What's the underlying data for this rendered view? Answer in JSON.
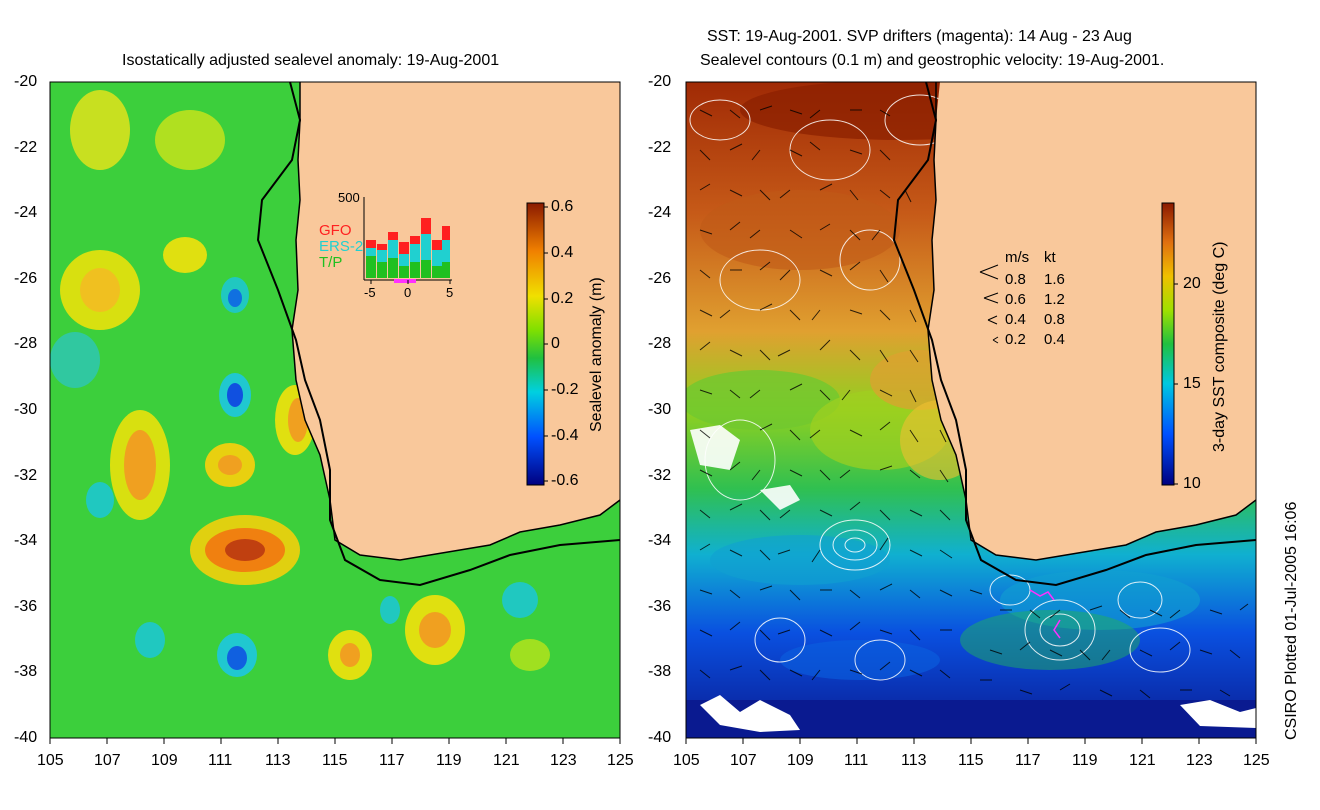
{
  "left_panel": {
    "title": "Isostatically adjusted sealevel anomaly: 19-Aug-2001",
    "colorbar_label": "Sealevel anomaly (m)",
    "colorbar_ticks": [
      "0.6",
      "0.4",
      "0.2",
      "0",
      "-0.2",
      "-0.4",
      "-0.6"
    ],
    "inset": {
      "ymax_label": "500",
      "legend": [
        {
          "label": "GFO",
          "color": "#ff2020"
        },
        {
          "label": "ERS-2",
          "color": "#20d0d0"
        },
        {
          "label": "T/P",
          "color": "#20c020"
        }
      ],
      "x_ticks": [
        "-5",
        "0",
        "5"
      ]
    }
  },
  "right_panel": {
    "title_line1": "SST: 19-Aug-2001. SVP drifters (magenta): 14 Aug - 23 Aug",
    "title_line2": "Sealevel contours (0.1 m) and geostrophic velocity: 19-Aug-2001.",
    "colorbar_label": "3-day SST composite (deg C)",
    "colorbar_ticks": [
      "20",
      "15",
      "10"
    ],
    "velocity_legend": {
      "header_ms": "m/s",
      "header_kt": "kt",
      "rows": [
        {
          "ms": "0.8",
          "kt": "1.6"
        },
        {
          "ms": "0.6",
          "kt": "1.2"
        },
        {
          "ms": "0.4",
          "kt": "0.8"
        },
        {
          "ms": "0.2",
          "kt": "0.4"
        }
      ]
    }
  },
  "y_axis_ticks": [
    "-20",
    "-22",
    "-24",
    "-26",
    "-28",
    "-30",
    "-32",
    "-34",
    "-36",
    "-38",
    "-40"
  ],
  "x_axis_ticks": [
    "105",
    "107",
    "109",
    "111",
    "113",
    "115",
    "117",
    "119",
    "121",
    "123",
    "125"
  ],
  "footer": "CSIRO Plotted 01-Jul-2005 16:06",
  "colors": {
    "land": "#f9c89b",
    "coast": "#000000"
  }
}
